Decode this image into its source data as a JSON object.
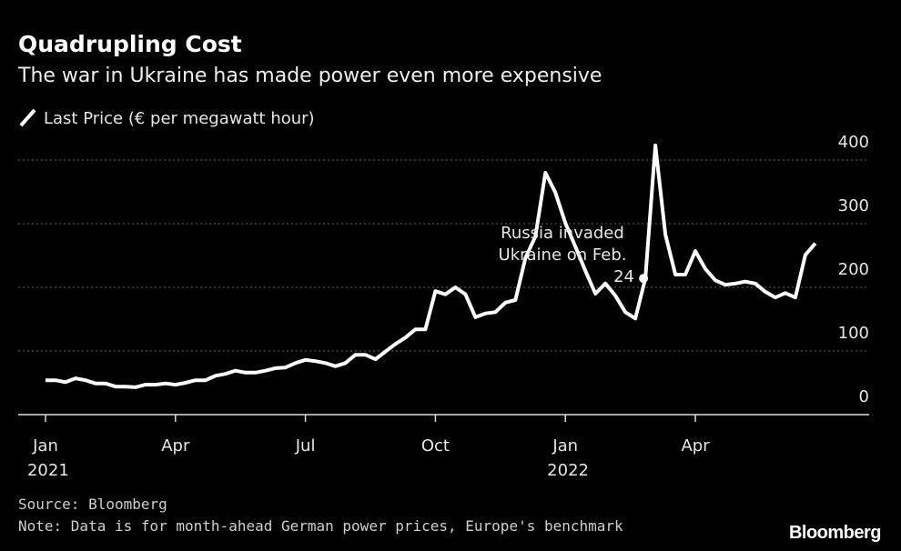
{
  "chart_data": {
    "type": "line",
    "title": "Quadrupling Cost",
    "subtitle": "The war in Ukraine has made power even more expensive",
    "series": [
      {
        "name": "Last Price (€ per megawatt hour)",
        "color": "#ffffff",
        "values": [
          54,
          54,
          51,
          57,
          54,
          49,
          49,
          44,
          44,
          43,
          47,
          47,
          49,
          47,
          50,
          54,
          54,
          61,
          64,
          69,
          66,
          66,
          69,
          73,
          74,
          81,
          86,
          84,
          81,
          76,
          81,
          94,
          94,
          87,
          99,
          111,
          121,
          134,
          134,
          194,
          189,
          200,
          189,
          153,
          159,
          161,
          176,
          180,
          246,
          280,
          380,
          349,
          301,
          264,
          226,
          190,
          206,
          187,
          161,
          151,
          214,
          423,
          283,
          220,
          220,
          257,
          229,
          211,
          204,
          206,
          209,
          206,
          193,
          184,
          191,
          184,
          251,
          269
        ]
      }
    ],
    "categories": [
      "Jan 2021",
      null,
      null,
      null,
      null,
      null,
      null,
      null,
      null,
      null,
      null,
      null,
      null,
      "Apr",
      null,
      null,
      null,
      null,
      null,
      null,
      null,
      null,
      null,
      null,
      null,
      null,
      "Jul",
      null,
      null,
      null,
      null,
      null,
      null,
      null,
      null,
      null,
      null,
      null,
      null,
      "Oct",
      null,
      null,
      null,
      null,
      null,
      null,
      null,
      null,
      null,
      null,
      null,
      null,
      "Jan 2022",
      null,
      null,
      null,
      null,
      null,
      null,
      null,
      null,
      null,
      null,
      null,
      null,
      "Apr",
      null,
      null,
      null,
      null,
      null,
      null,
      null,
      null,
      null,
      null,
      null,
      null
    ],
    "ylim": [
      0,
      400
    ],
    "yticks": [
      0,
      100,
      200,
      300,
      400
    ],
    "grid": true,
    "annotation": {
      "lines": [
        "Russia invaded",
        "Ukraine on Feb.",
        "24"
      ]
    },
    "source": "Source: Bloomberg",
    "note": "Note: Data is for month-ahead German power prices, Europe's benchmark",
    "brand": "Bloomberg"
  }
}
